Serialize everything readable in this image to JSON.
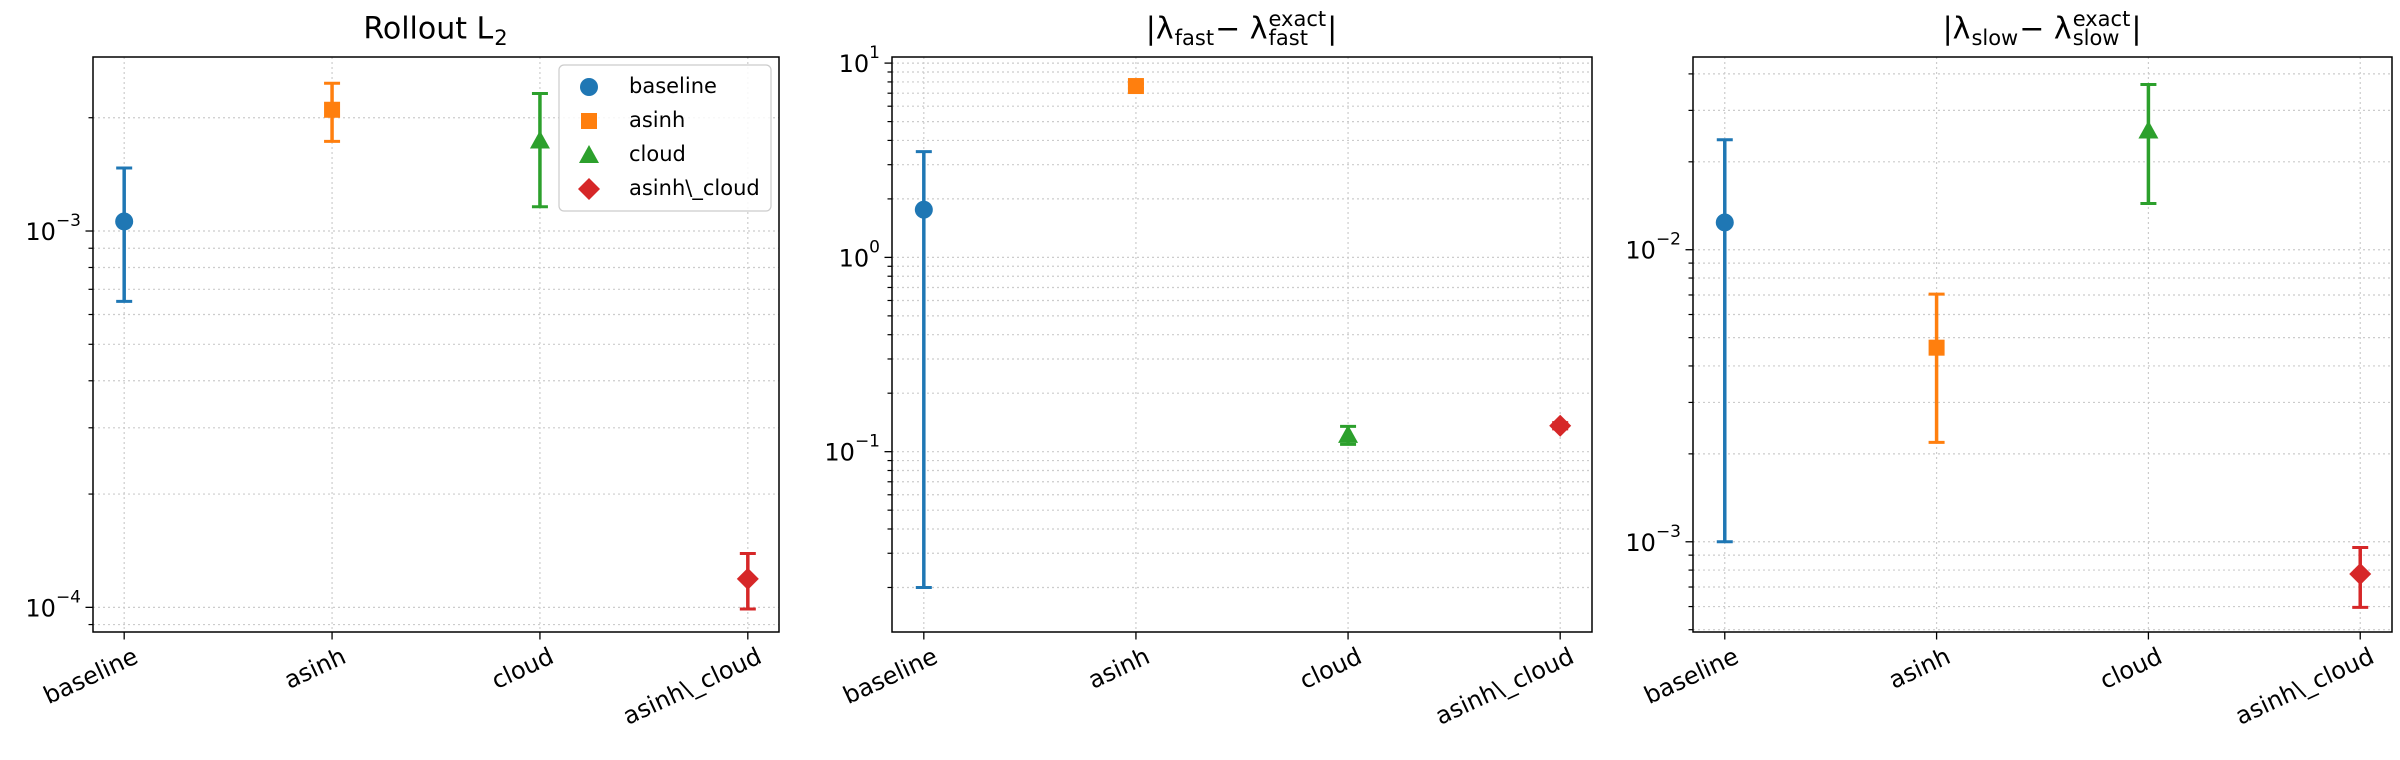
{
  "chart_data": [
    {
      "type": "errorbar",
      "title": [
        {
          "text": "Rollout L"
        },
        {
          "sub": "2"
        }
      ],
      "categories": [
        "baseline",
        "asinh",
        "cloud",
        "asinh\\_cloud"
      ],
      "log_y": true,
      "grid": true,
      "legend": "upper right",
      "ylim": [
        8.6e-05,
        0.0029
      ],
      "yticks": [
        {
          "value": 0.0001,
          "label": "10",
          "exponent": "−4"
        },
        {
          "value": 0.001,
          "label": "10",
          "exponent": "−3"
        }
      ],
      "yticks_minor": [
        9e-05,
        0.0002,
        0.0003,
        0.0004,
        0.0005,
        0.0006,
        0.0007,
        0.0008,
        0.0009,
        0.002
      ],
      "series": [
        {
          "name": "baseline",
          "color": "#1f77b4",
          "marker": "circle",
          "values": [
            0.00106,
            null,
            null,
            null
          ],
          "errors": [
            0.00041,
            null,
            null,
            null
          ]
        },
        {
          "name": "asinh",
          "color": "#ff7f0e",
          "marker": "square",
          "values": [
            null,
            0.0021,
            null,
            null
          ],
          "errors": [
            null,
            0.00037,
            null,
            null
          ]
        },
        {
          "name": "cloud",
          "color": "#2ca02c",
          "marker": "triangle",
          "values": [
            null,
            null,
            0.00174,
            null
          ],
          "errors": [
            null,
            null,
            0.00058,
            null
          ]
        },
        {
          "name": "asinh\\_cloud",
          "color": "#d62728",
          "marker": "diamond",
          "values": [
            null,
            null,
            null,
            0.000119
          ],
          "errors": [
            null,
            null,
            null,
            2e-05
          ]
        }
      ]
    },
    {
      "type": "errorbar",
      "title": [
        {
          "text": "|λ"
        },
        {
          "sub": "fast"
        },
        {
          "text": " − λ"
        },
        {
          "sup": "exact",
          "sub": "fast"
        },
        {
          "text": "|"
        }
      ],
      "categories": [
        "baseline",
        "asinh",
        "cloud",
        "asinh\\_cloud"
      ],
      "log_y": true,
      "grid": true,
      "ylim": [
        0.0118,
        10.75
      ],
      "yticks": [
        {
          "value": 0.1,
          "label": "10",
          "exponent": "−1"
        },
        {
          "value": 1,
          "label": "10",
          "exponent": "0"
        },
        {
          "value": 10,
          "label": "10",
          "exponent": "1"
        }
      ],
      "yticks_minor": [
        0.02,
        0.03,
        0.04,
        0.05,
        0.06,
        0.07,
        0.08,
        0.09,
        0.2,
        0.3,
        0.4,
        0.5,
        0.6,
        0.7,
        0.8,
        0.9,
        2,
        3,
        4,
        5,
        6,
        7,
        8,
        9
      ],
      "series": [
        {
          "color": "#1f77b4",
          "marker": "circle",
          "values": [
            1.76,
            null,
            null,
            null
          ],
          "errors": [
            1.74,
            null,
            null,
            null
          ]
        },
        {
          "color": "#ff7f0e",
          "marker": "square",
          "values": [
            null,
            7.62,
            null,
            null
          ],
          "errors": [
            null,
            0.2,
            null,
            null
          ]
        },
        {
          "color": "#2ca02c",
          "marker": "triangle",
          "values": [
            null,
            null,
            0.122,
            null
          ],
          "errors": [
            null,
            null,
            0.013,
            null
          ]
        },
        {
          "color": "#d62728",
          "marker": "diamond",
          "values": [
            null,
            null,
            null,
            0.136
          ],
          "errors": [
            null,
            null,
            null,
            0.005
          ]
        }
      ]
    },
    {
      "type": "errorbar",
      "title": [
        {
          "text": "|λ"
        },
        {
          "sub": "slow"
        },
        {
          "text": " − λ"
        },
        {
          "sup": "exact",
          "sub": "slow"
        },
        {
          "text": "|"
        }
      ],
      "categories": [
        "baseline",
        "asinh",
        "cloud",
        "asinh\\_cloud"
      ],
      "log_y": true,
      "grid": true,
      "ylim": [
        0.000491,
        0.0457
      ],
      "yticks": [
        {
          "value": 0.001,
          "label": "10",
          "exponent": "−3"
        },
        {
          "value": 0.01,
          "label": "10",
          "exponent": "−2"
        }
      ],
      "yticks_minor": [
        0.0005,
        0.0006,
        0.0007,
        0.0008,
        0.0009,
        0.002,
        0.003,
        0.004,
        0.005,
        0.006,
        0.007,
        0.008,
        0.009,
        0.02,
        0.03,
        0.04
      ],
      "series": [
        {
          "color": "#1f77b4",
          "marker": "circle",
          "values": [
            0.0124,
            null,
            null,
            null
          ],
          "errors": [
            0.0114,
            null,
            null,
            null
          ]
        },
        {
          "color": "#ff7f0e",
          "marker": "square",
          "values": [
            null,
            0.00462,
            null,
            null
          ],
          "errors": [
            null,
            0.00243,
            null,
            null
          ]
        },
        {
          "color": "#2ca02c",
          "marker": "triangle",
          "values": [
            null,
            null,
            0.0256,
            null
          ],
          "errors": [
            null,
            null,
            0.0112,
            null
          ]
        },
        {
          "color": "#d62728",
          "marker": "diamond",
          "values": [
            null,
            null,
            null,
            0.000776
          ],
          "errors": [
            null,
            null,
            null,
            0.00018
          ]
        }
      ]
    }
  ]
}
